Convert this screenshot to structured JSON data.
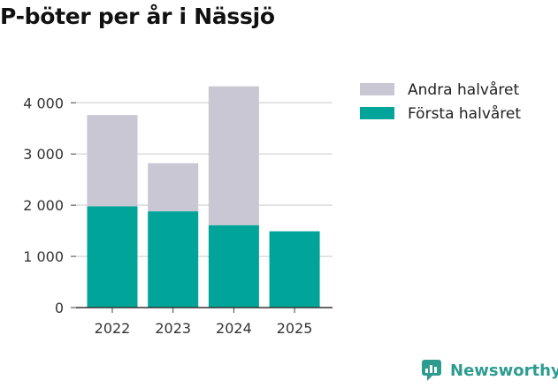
{
  "title": "P-böter per år i Nässjö",
  "brand": {
    "name": "Newsworthy",
    "icon": "newsworthy-logo-icon",
    "color": "#2d9c8e"
  },
  "chart_data": {
    "type": "bar",
    "stacked": true,
    "title": "P-böter per år i Nässjö",
    "categories": [
      "2022",
      "2023",
      "2024",
      "2025"
    ],
    "series": [
      {
        "name": "Första halvåret",
        "values": [
          1980,
          1880,
          1610,
          1490
        ],
        "color": "#00a499"
      },
      {
        "name": "Andra halvåret",
        "values": [
          1780,
          940,
          2710,
          0
        ],
        "color": "#c8c7d3"
      }
    ],
    "legend_order": [
      "Andra halvåret",
      "Första halvåret"
    ],
    "yticks": [
      0,
      1000,
      2000,
      3000,
      4000
    ],
    "ytick_labels": [
      "0",
      "1 000",
      "2 000",
      "3 000",
      "4 000"
    ],
    "ylim": [
      0,
      4350
    ],
    "xlabel": "",
    "ylabel": "",
    "grid": true,
    "legend_position": "top-right"
  }
}
